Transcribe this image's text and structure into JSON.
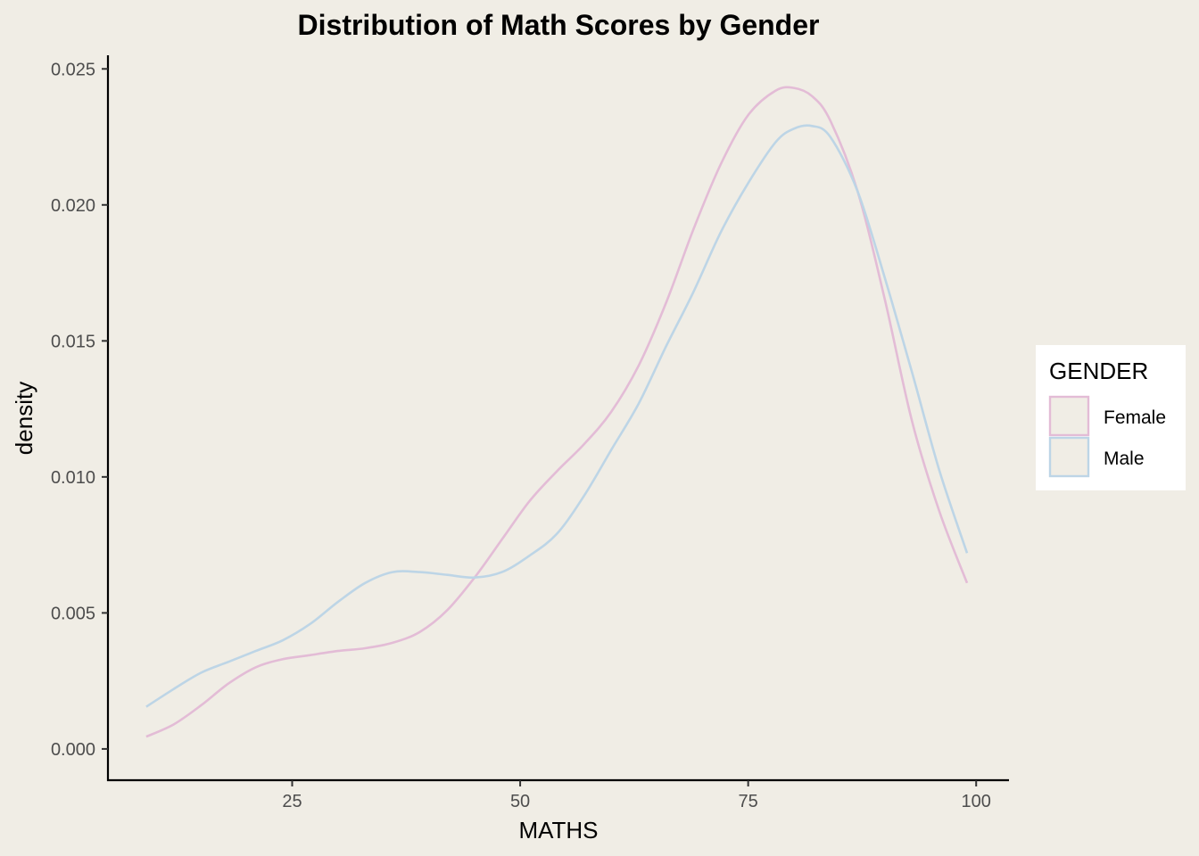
{
  "chart_data": {
    "type": "line",
    "title": "Distribution of Math Scores by Gender",
    "xlabel": "MATHS",
    "ylabel": "density",
    "xlim": [
      4.8,
      103.5
    ],
    "ylim": [
      -0.00115,
      0.0255
    ],
    "xticks": [
      25,
      50,
      75,
      100
    ],
    "yticks": [
      0.0,
      0.005,
      0.01,
      0.015,
      0.02,
      0.025
    ],
    "ytick_labels": [
      "0.000",
      "0.005",
      "0.010",
      "0.015",
      "0.020",
      "0.025"
    ],
    "xtick_labels": [
      "25",
      "50",
      "75",
      "100"
    ],
    "grid": false,
    "legend": {
      "title": "GENDER",
      "position": "right"
    },
    "series": [
      {
        "name": "Female",
        "color": "#E3BCD6",
        "x": [
          9,
          12,
          15,
          18,
          21,
          24,
          27,
          30,
          33,
          36,
          39,
          42,
          45,
          48,
          51,
          54,
          57,
          60,
          63,
          66,
          69,
          72,
          75,
          78,
          80,
          82,
          84,
          87,
          90,
          93,
          96,
          99
        ],
        "y": [
          0.00045,
          0.0009,
          0.0016,
          0.0024,
          0.003,
          0.0033,
          0.00345,
          0.0036,
          0.0037,
          0.0039,
          0.0043,
          0.0051,
          0.0063,
          0.0077,
          0.0091,
          0.0102,
          0.0112,
          0.0124,
          0.0141,
          0.0164,
          0.0191,
          0.0215,
          0.0233,
          0.0242,
          0.0243,
          0.024,
          0.0231,
          0.0205,
          0.0165,
          0.012,
          0.0087,
          0.0061
        ]
      },
      {
        "name": "Male",
        "color": "#BDD5E6",
        "x": [
          9,
          12,
          15,
          18,
          21,
          24,
          27,
          30,
          33,
          36,
          39,
          42,
          45,
          48,
          51,
          54,
          57,
          60,
          63,
          66,
          69,
          72,
          75,
          78,
          80,
          82,
          84,
          87,
          90,
          93,
          96,
          99
        ],
        "y": [
          0.00155,
          0.0022,
          0.0028,
          0.0032,
          0.0036,
          0.004,
          0.0046,
          0.0054,
          0.0061,
          0.0065,
          0.0065,
          0.0064,
          0.0063,
          0.0065,
          0.0071,
          0.0079,
          0.0093,
          0.011,
          0.0127,
          0.0148,
          0.0168,
          0.019,
          0.0208,
          0.0223,
          0.0228,
          0.0229,
          0.0225,
          0.0205,
          0.0173,
          0.0138,
          0.0102,
          0.0072
        ]
      }
    ]
  }
}
